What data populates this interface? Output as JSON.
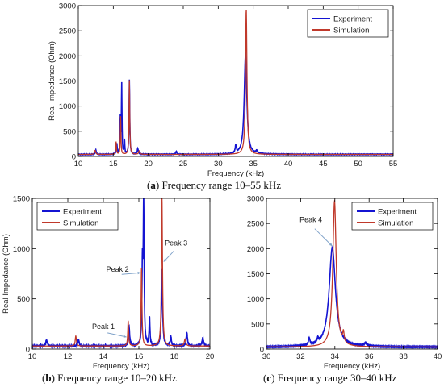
{
  "colors": {
    "experiment": "#1414d2",
    "simulation": "#c0392b",
    "axis": "#000000"
  },
  "captions": {
    "a": {
      "letter": "a",
      "text": " Frequency range 10–55 kHz"
    },
    "b": {
      "letter": "b",
      "text": " Frequency range 10–20 kHz"
    },
    "c": {
      "letter": "c",
      "text": " Frequency range 30–40 kHz"
    }
  },
  "chart_data": [
    {
      "id": "a",
      "type": "line",
      "xlabel": "Frequency (kHz)",
      "ylabel": "Real Impedance (Ohm)",
      "xlim": [
        10,
        55
      ],
      "ylim": [
        0,
        3000
      ],
      "xticks": [
        10,
        15,
        20,
        25,
        30,
        35,
        40,
        45,
        50,
        55
      ],
      "yticks": [
        0,
        500,
        1000,
        1500,
        2000,
        2500,
        3000
      ],
      "legend": {
        "position": "top-right",
        "entries": [
          "Experiment",
          "Simulation"
        ]
      },
      "baseline": 40,
      "series": [
        {
          "name": "Experiment",
          "peaks": [
            [
              12.5,
              90,
              0.08
            ],
            [
              15.5,
              200,
              0.08
            ],
            [
              16.0,
              750,
              0.05
            ],
            [
              16.2,
              1380,
              0.05
            ],
            [
              16.6,
              280,
              0.05
            ],
            [
              17.3,
              1480,
              0.06
            ],
            [
              18.5,
              110,
              0.1
            ],
            [
              24.0,
              70,
              0.08
            ],
            [
              32.5,
              150,
              0.1
            ],
            [
              33.9,
              2000,
              0.22
            ],
            [
              35.5,
              60,
              0.1
            ]
          ]
        },
        {
          "name": "Simulation",
          "peaks": [
            [
              12.4,
              80,
              0.1
            ],
            [
              15.4,
              250,
              0.06
            ],
            [
              16.05,
              770,
              0.05
            ],
            [
              17.3,
              1480,
              0.06
            ],
            [
              18.7,
              70,
              0.1
            ],
            [
              34.0,
              2900,
              0.12
            ]
          ]
        }
      ],
      "annotations": []
    },
    {
      "id": "b",
      "type": "line",
      "xlabel": "Frequency (kHz)",
      "ylabel": "Real Impedance (Ohm)",
      "xlim": [
        10,
        20
      ],
      "ylim": [
        0,
        1500
      ],
      "xticks": [
        10,
        12,
        14,
        16,
        18,
        20
      ],
      "yticks": [
        0,
        500,
        1000,
        1500
      ],
      "legend": {
        "position": "top-left",
        "entries": [
          "Experiment",
          "Simulation"
        ]
      },
      "baseline": 30,
      "series": [
        {
          "name": "Experiment",
          "peaks": [
            [
              10.8,
              60,
              0.05
            ],
            [
              12.6,
              70,
              0.04
            ],
            [
              15.45,
              190,
              0.04
            ],
            [
              16.2,
              750,
              0.03
            ],
            [
              16.27,
              1380,
              0.03
            ],
            [
              16.6,
              280,
              0.03
            ],
            [
              17.3,
              760,
              0.04
            ],
            [
              17.8,
              90,
              0.04
            ],
            [
              18.7,
              140,
              0.04
            ],
            [
              19.6,
              80,
              0.05
            ]
          ]
        },
        {
          "name": "Simulation",
          "peaks": [
            [
              12.45,
              100,
              0.04
            ],
            [
              15.4,
              250,
              0.03
            ],
            [
              16.15,
              770,
              0.03
            ],
            [
              17.3,
              1480,
              0.035
            ],
            [
              18.6,
              70,
              0.05
            ]
          ]
        }
      ],
      "annotations": [
        {
          "text": "Peak 1",
          "x": 14.0,
          "y": 200,
          "tx": 15.3,
          "ty": 120
        },
        {
          "text": "Peak 2",
          "x": 14.8,
          "y": 770,
          "tx": 16.1,
          "ty": 760
        },
        {
          "text": "Peak 3",
          "x": 18.1,
          "y": 1030,
          "tx": 17.4,
          "ty": 870
        }
      ]
    },
    {
      "id": "c",
      "type": "line",
      "xlabel": "Frequency (kHz)",
      "ylabel": "",
      "xlim": [
        30,
        40
      ],
      "ylim": [
        0,
        3000
      ],
      "xticks": [
        30,
        32,
        34,
        36,
        38,
        40
      ],
      "yticks": [
        0,
        500,
        1000,
        1500,
        2000,
        2500,
        3000
      ],
      "legend": {
        "position": "top-right",
        "entries": [
          "Experiment",
          "Simulation"
        ]
      },
      "baseline": 40,
      "series": [
        {
          "name": "Experiment",
          "peaks": [
            [
              32.5,
              140,
              0.05
            ],
            [
              33.0,
              80,
              0.05
            ],
            [
              33.85,
              1980,
              0.22
            ],
            [
              35.8,
              60,
              0.1
            ]
          ]
        },
        {
          "name": "Simulation",
          "peaks": [
            [
              33.98,
              2900,
              0.12
            ],
            [
              34.5,
              200,
              0.05
            ]
          ]
        }
      ],
      "annotations": [
        {
          "text": "Peak 4",
          "x": 32.6,
          "y": 2530,
          "tx": 33.85,
          "ty": 2050
        }
      ]
    }
  ]
}
